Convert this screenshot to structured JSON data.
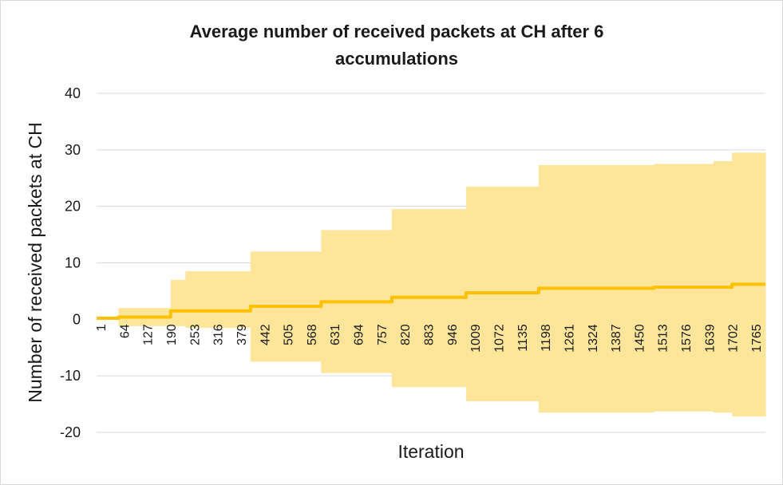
{
  "chart_data": {
    "type": "line",
    "title": "Average number of received packets at CH after 6 accumulations",
    "title_lines": [
      "Average number of received packets at CH after 6",
      "accumulations"
    ],
    "xlabel": "Iteration",
    "ylabel": "Number of received packets at CH",
    "xlim": [
      1,
      1800
    ],
    "ylim": [
      -20,
      40
    ],
    "yticks": [
      -20,
      -10,
      0,
      10,
      20,
      30,
      40
    ],
    "xtick_labels": [
      "1",
      "64",
      "127",
      "190",
      "253",
      "316",
      "379",
      "442",
      "505",
      "568",
      "631",
      "694",
      "757",
      "820",
      "883",
      "946",
      "1009",
      "1072",
      "1135",
      "1198",
      "1261",
      "1324",
      "1387",
      "1450",
      "1513",
      "1576",
      "1639",
      "1702",
      "1765"
    ],
    "grid": true,
    "legend": "none",
    "series": [
      {
        "kind": "band",
        "color": "#fde59a",
        "segments": [
          {
            "x0": 1,
            "x1": 60,
            "upper": 0.4,
            "lower": 0.0
          },
          {
            "x0": 60,
            "x1": 200,
            "upper": 2.0,
            "lower": -1.2
          },
          {
            "x0": 200,
            "x1": 240,
            "upper": 7.0,
            "lower": -1.2
          },
          {
            "x0": 240,
            "x1": 415,
            "upper": 8.5,
            "lower": -1.5
          },
          {
            "x0": 415,
            "x1": 605,
            "upper": 12.0,
            "lower": -7.5
          },
          {
            "x0": 605,
            "x1": 795,
            "upper": 15.8,
            "lower": -9.5
          },
          {
            "x0": 795,
            "x1": 995,
            "upper": 19.5,
            "lower": -12.0
          },
          {
            "x0": 995,
            "x1": 1190,
            "upper": 23.5,
            "lower": -14.5
          },
          {
            "x0": 1190,
            "x1": 1500,
            "upper": 27.3,
            "lower": -16.5
          },
          {
            "x0": 1500,
            "x1": 1660,
            "upper": 27.5,
            "lower": -16.3
          },
          {
            "x0": 1660,
            "x1": 1710,
            "upper": 28.0,
            "lower": -16.5
          },
          {
            "x0": 1710,
            "x1": 1800,
            "upper": 29.5,
            "lower": -17.2
          }
        ]
      },
      {
        "kind": "line",
        "color": "#ffc000",
        "segments": [
          {
            "x0": 1,
            "x1": 60,
            "value": 0.2
          },
          {
            "x0": 60,
            "x1": 200,
            "value": 0.4
          },
          {
            "x0": 200,
            "x1": 415,
            "value": 1.5
          },
          {
            "x0": 415,
            "x1": 605,
            "value": 2.3
          },
          {
            "x0": 605,
            "x1": 795,
            "value": 3.1
          },
          {
            "x0": 795,
            "x1": 995,
            "value": 3.9
          },
          {
            "x0": 995,
            "x1": 1190,
            "value": 4.7
          },
          {
            "x0": 1190,
            "x1": 1500,
            "value": 5.5
          },
          {
            "x0": 1500,
            "x1": 1710,
            "value": 5.7
          },
          {
            "x0": 1710,
            "x1": 1800,
            "value": 6.2
          }
        ]
      }
    ]
  }
}
